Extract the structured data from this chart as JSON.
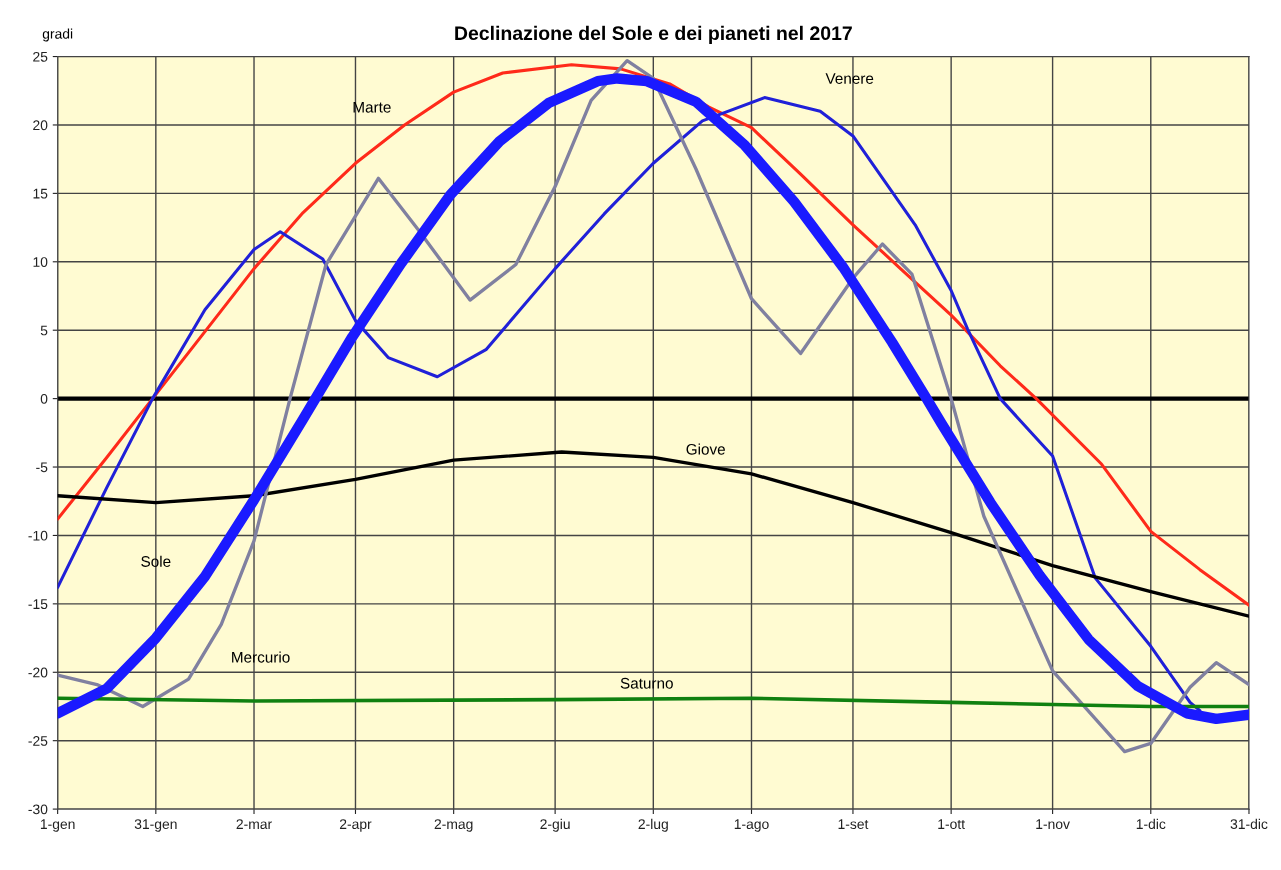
{
  "chart_data": {
    "type": "line",
    "title": "Declinazione del Sole e dei pianeti nel 2017",
    "ylabel": "gradi",
    "xlim": [
      "2017-01-01",
      "2017-12-31"
    ],
    "ylim": [
      -30,
      25
    ],
    "xticks": [
      {
        "value": "2017-01-01",
        "label": "1-gen"
      },
      {
        "value": "2017-01-31",
        "label": "31-gen"
      },
      {
        "value": "2017-03-02",
        "label": "2-mar"
      },
      {
        "value": "2017-04-02",
        "label": "2-apr"
      },
      {
        "value": "2017-05-02",
        "label": "2-mag"
      },
      {
        "value": "2017-06-02",
        "label": "2-giu"
      },
      {
        "value": "2017-07-02",
        "label": "2-lug"
      },
      {
        "value": "2017-08-01",
        "label": "1-ago"
      },
      {
        "value": "2017-09-01",
        "label": "1-set"
      },
      {
        "value": "2017-10-01",
        "label": "1-ott"
      },
      {
        "value": "2017-11-01",
        "label": "1-nov"
      },
      {
        "value": "2017-12-01",
        "label": "1-dic"
      },
      {
        "value": "2017-12-31",
        "label": "31-dic"
      }
    ],
    "yticks": [
      -30,
      -25,
      -20,
      -15,
      -10,
      -5,
      0,
      5,
      10,
      15,
      20,
      25
    ],
    "grid": true,
    "marker": "none",
    "line_style": "solid",
    "ref_lines": [
      {
        "axis": "y",
        "value": 0,
        "label": null,
        "color": "#000000"
      }
    ],
    "series": [
      {
        "name": "Marte",
        "color": "#ff2a1a",
        "x": [
          "2017-01-01",
          "2017-01-16",
          "2017-01-30",
          "2017-02-15",
          "2017-03-02",
          "2017-03-17",
          "2017-04-02",
          "2017-04-17",
          "2017-05-02",
          "2017-05-17",
          "2017-06-07",
          "2017-06-22",
          "2017-07-07",
          "2017-07-19",
          "2017-08-01",
          "2017-08-16",
          "2017-09-01",
          "2017-09-16",
          "2017-10-01",
          "2017-10-16",
          "2017-10-27",
          "2017-11-16",
          "2017-12-01",
          "2017-12-16",
          "2017-12-31"
        ],
        "values": [
          -8.8,
          -4.3,
          0,
          4.9,
          9.5,
          13.6,
          17.2,
          20,
          22.4,
          23.8,
          24.4,
          24.1,
          23,
          21.3,
          19.8,
          16.4,
          12.7,
          9.4,
          6.1,
          2.4,
          0,
          -4.8,
          -9.7,
          -12.5,
          -15.1
        ]
      },
      {
        "name": "Venere",
        "color": "#2020d8",
        "x": [
          "2017-01-01",
          "2017-01-16",
          "2017-01-30",
          "2017-02-15",
          "2017-03-02",
          "2017-03-10",
          "2017-03-23",
          "2017-04-02",
          "2017-04-12",
          "2017-04-27",
          "2017-05-12",
          "2017-06-02",
          "2017-06-17",
          "2017-07-02",
          "2017-07-17",
          "2017-08-05",
          "2017-08-22",
          "2017-09-01",
          "2017-09-20",
          "2017-10-01",
          "2017-10-06",
          "2017-10-16",
          "2017-11-01",
          "2017-11-14",
          "2017-12-01",
          "2017-12-13",
          "2017-12-16"
        ],
        "values": [
          -13.8,
          -6.5,
          0,
          6.5,
          10.9,
          12.2,
          10.2,
          5.7,
          3.0,
          1.6,
          3.6,
          9.5,
          13.5,
          17.2,
          20.3,
          22.0,
          21.0,
          19.2,
          12.7,
          7.9,
          5.1,
          0,
          -4.2,
          -13.1,
          -18.1,
          -22.2,
          -22.8
        ]
      },
      {
        "name": "Giove",
        "color": "#000000",
        "x": [
          "2017-01-01",
          "2017-01-31",
          "2017-03-02",
          "2017-04-02",
          "2017-05-02",
          "2017-06-04",
          "2017-07-02",
          "2017-08-01",
          "2017-09-01",
          "2017-10-01",
          "2017-11-01",
          "2017-12-01",
          "2017-12-31"
        ],
        "values": [
          -7.1,
          -7.6,
          -7.1,
          -5.9,
          -4.5,
          -3.9,
          -4.3,
          -5.5,
          -7.6,
          -9.8,
          -12.2,
          -14.1,
          -15.9
        ]
      },
      {
        "name": "Sole",
        "color": "#1a1aff",
        "x": [
          "2017-01-01",
          "2017-01-16",
          "2017-01-31",
          "2017-02-15",
          "2017-03-02",
          "2017-03-17",
          "2017-04-01",
          "2017-04-16",
          "2017-05-01",
          "2017-05-16",
          "2017-05-31",
          "2017-06-15",
          "2017-06-21",
          "2017-06-30",
          "2017-07-15",
          "2017-07-30",
          "2017-08-14",
          "2017-08-29",
          "2017-09-13",
          "2017-09-23",
          "2017-09-28",
          "2017-10-13",
          "2017-10-28",
          "2017-11-12",
          "2017-11-27",
          "2017-12-12",
          "2017-12-21",
          "2017-12-31"
        ],
        "values": [
          -23.0,
          -21.2,
          -17.5,
          -13.0,
          -7.4,
          -1.5,
          4.5,
          9.9,
          14.9,
          18.8,
          21.6,
          23.2,
          23.4,
          23.2,
          21.7,
          18.5,
          14.4,
          9.6,
          4.1,
          0.2,
          -1.8,
          -7.6,
          -12.9,
          -17.6,
          -21.0,
          -23.0,
          -23.4,
          -23.1
        ]
      },
      {
        "name": "Mercurio",
        "color": "#8080a0",
        "x": [
          "2017-01-01",
          "2017-01-13",
          "2017-01-27",
          "2017-02-10",
          "2017-02-20",
          "2017-03-02",
          "2017-03-13",
          "2017-03-24",
          "2017-04-09",
          "2017-04-21",
          "2017-05-07",
          "2017-05-21",
          "2017-06-02",
          "2017-06-13",
          "2017-06-24",
          "2017-07-02",
          "2017-07-15",
          "2017-08-01",
          "2017-08-16",
          "2017-09-01",
          "2017-09-10",
          "2017-09-19",
          "2017-10-01",
          "2017-10-11",
          "2017-11-01",
          "2017-11-23",
          "2017-12-01",
          "2017-12-13",
          "2017-12-21",
          "2017-12-31"
        ],
        "values": [
          -20.2,
          -20.9,
          -22.5,
          -20.5,
          -16.5,
          -10.4,
          0,
          9.8,
          16.1,
          12.4,
          7.2,
          9.8,
          15.5,
          21.8,
          24.7,
          23.4,
          16.8,
          7.3,
          3.3,
          8.8,
          11.3,
          9.1,
          0,
          -8.6,
          -19.9,
          -25.8,
          -25.2,
          -21.1,
          -19.3,
          -20.9
        ]
      },
      {
        "name": "Saturno",
        "color": "#108010",
        "x": [
          "2017-01-01",
          "2017-03-02",
          "2017-06-02",
          "2017-08-01",
          "2017-10-01",
          "2017-12-01",
          "2017-12-31"
        ],
        "values": [
          -21.9,
          -22.1,
          -22.0,
          -21.9,
          -22.2,
          -22.5,
          -22.5
        ]
      }
    ]
  }
}
